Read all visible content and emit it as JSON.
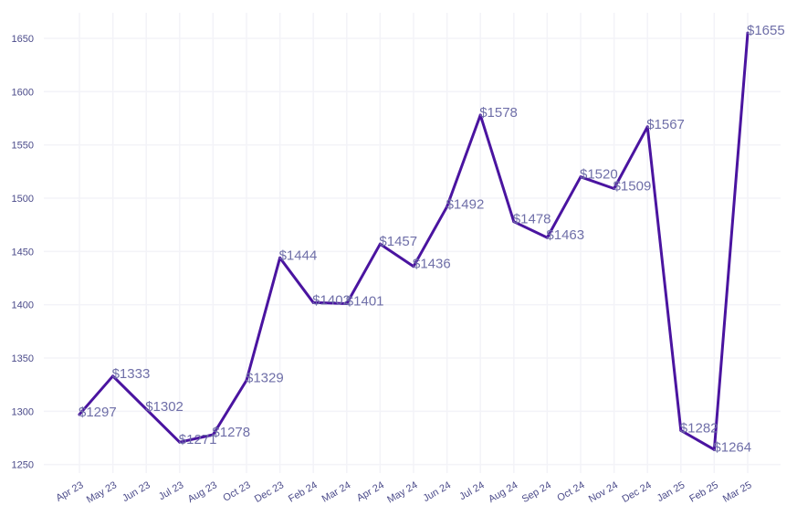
{
  "chart_data": {
    "type": "line",
    "title": "",
    "xlabel": "",
    "ylabel": "",
    "categories": [
      "Apr 23",
      "May 23",
      "Jun 23",
      "Jul 23",
      "Aug 23",
      "Oct 23",
      "Dec 23",
      "Feb 24",
      "Mar 24",
      "Apr 24",
      "May 24",
      "Jun 24",
      "Jul 24",
      "Aug 24",
      "Sep 24",
      "Oct 24",
      "Nov 24",
      "Dec 24",
      "Jan 25",
      "Feb 25",
      "Mar 25"
    ],
    "series": [
      {
        "values": [
          1297,
          1333,
          1302,
          1271,
          1278,
          1329,
          1444,
          1402,
          1401,
          1457,
          1436,
          1492,
          1578,
          1478,
          1463,
          1520,
          1509,
          1567,
          1282,
          1264,
          1655
        ],
        "data_labels": [
          "$1297",
          "$1333",
          "$1302",
          "$1271",
          "$1278",
          "$1329",
          "$1444",
          "$1402",
          "$1401",
          "$1457",
          "$1436",
          "$1492",
          "$1578",
          "$1478",
          "$1463",
          "$1520",
          "$1509",
          "$1567",
          "$1282",
          "$1264",
          "$1655"
        ],
        "color": "#4a14a0"
      }
    ],
    "yticks": [
      1250,
      1300,
      1350,
      1400,
      1450,
      1500,
      1550,
      1600,
      1650
    ],
    "ylim": [
      1242,
      1674
    ],
    "grid": true,
    "legend": "none",
    "colors": {
      "label": "#6f6fa8",
      "tick": "#4b4b8a",
      "grid": "#f3f3f8"
    }
  }
}
